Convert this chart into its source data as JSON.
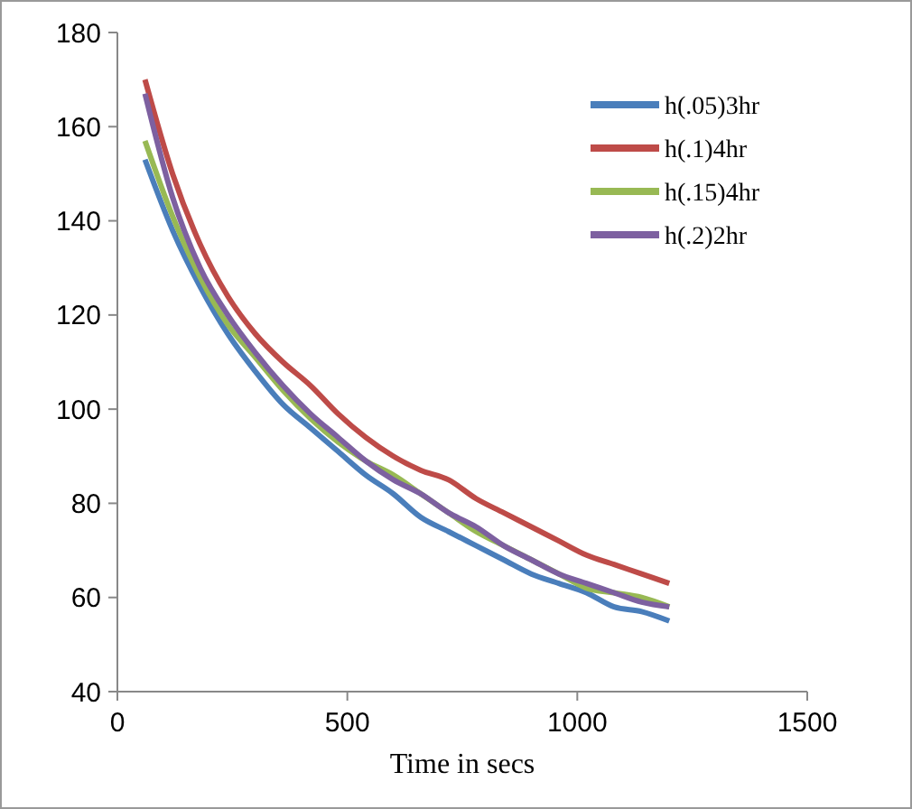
{
  "chart_data": {
    "type": "line",
    "xlabel": "Time in secs",
    "x": [
      60,
      120,
      180,
      240,
      300,
      360,
      420,
      480,
      540,
      600,
      660,
      720,
      780,
      840,
      900,
      960,
      1020,
      1080,
      1140,
      1200
    ],
    "series": [
      {
        "name": "h(.05)3hr",
        "color": "#4a7ebb",
        "values": [
          153,
          138,
          126,
          116,
          108,
          101,
          96,
          91,
          86,
          82,
          77,
          74,
          71,
          68,
          65,
          63,
          61,
          58,
          57,
          55
        ]
      },
      {
        "name": "h(.1)4hr",
        "color": "#be4b48",
        "values": [
          170,
          150,
          135,
          124,
          116,
          110,
          105,
          99,
          94,
          90,
          87,
          85,
          81,
          78,
          75,
          72,
          69,
          67,
          65,
          63
        ]
      },
      {
        "name": "h(.15)4hr",
        "color": "#98b954",
        "values": [
          157,
          141,
          128,
          118,
          111,
          104,
          98,
          93,
          89,
          86,
          82,
          78,
          74,
          71,
          68,
          65,
          62,
          61,
          60,
          58
        ]
      },
      {
        "name": "h(.2)2hr",
        "color": "#7d60a0",
        "values": [
          167,
          145,
          130,
          120,
          112,
          105,
          99,
          94,
          89,
          85,
          82,
          78,
          75,
          71,
          68,
          65,
          63,
          61,
          59,
          58
        ]
      }
    ],
    "xlim": [
      0,
      1500
    ],
    "ylim": [
      40,
      180
    ],
    "xticks": [
      0,
      500,
      1000,
      1500
    ],
    "yticks": [
      40,
      60,
      80,
      100,
      120,
      140,
      160,
      180
    ],
    "legend": "top right",
    "line_style": "solid",
    "marker": "none"
  }
}
